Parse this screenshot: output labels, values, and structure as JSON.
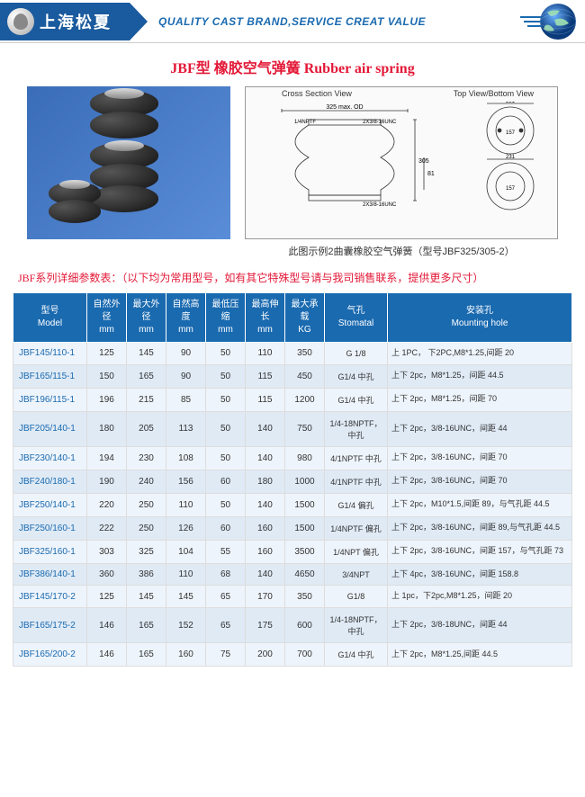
{
  "header": {
    "brand": "上海松夏",
    "registered": "®",
    "slogan_html": "QUALITY CAST BRAND,SERVICE CREAT VALUE"
  },
  "title": "JBF型 橡胶空气弹簧  Rubber air spring",
  "diagram": {
    "cross_section_label": "Cross Section View",
    "top_view_label": "Top View/Bottom View",
    "dim_od": "325 max. OD",
    "dim_h": "305",
    "dim_convol": "81",
    "port1": "1/4NPTF",
    "port2": "2X3/8-16UNC",
    "tv_outer": "231",
    "tv_inner": "157",
    "caption": "此图示例2曲囊橡胶空气弹簧（型号JBF325/305-2）"
  },
  "table_note": "JBF系列详细参数表：（以下均为常用型号，如有其它特殊型号请与我司销售联系，提供更多尺寸）",
  "columns": [
    {
      "zh": "型号",
      "en": "Model"
    },
    {
      "zh": "自然外径",
      "en": "mm"
    },
    {
      "zh": "最大外径",
      "en": "mm"
    },
    {
      "zh": "自然高度",
      "en": "mm"
    },
    {
      "zh": "最低压缩",
      "en": "mm"
    },
    {
      "zh": "最高伸长",
      "en": "mm"
    },
    {
      "zh": "最大承载",
      "en": "KG"
    },
    {
      "zh": "气孔",
      "en": "Stomatal"
    },
    {
      "zh": "安装孔",
      "en": "Mounting hole"
    }
  ],
  "rows": [
    [
      "JBF145/110-1",
      "125",
      "145",
      "90",
      "50",
      "110",
      "350",
      "G 1/8",
      "上    1PC，   下2PC,M8*1.25,间距 20"
    ],
    [
      "JBF165/115-1",
      "150",
      "165",
      "90",
      "50",
      "115",
      "450",
      "G1/4 中孔",
      "上下 2pc，M8*1.25，间距 44.5"
    ],
    [
      "JBF196/115-1",
      "196",
      "215",
      "85",
      "50",
      "115",
      "1200",
      "G1/4 中孔",
      "上下 2pc，M8*1.25，间距 70"
    ],
    [
      "JBF205/140-1",
      "180",
      "205",
      "113",
      "50",
      "140",
      "750",
      "1/4-18NPTF，中孔",
      "上下 2pc，3/8-16UNC，间距 44"
    ],
    [
      "JBF230/140-1",
      "194",
      "230",
      "108",
      "50",
      "140",
      "980",
      "4/1NPTF 中孔",
      "上下 2pc，3/8-16UNC，间距 70"
    ],
    [
      "JBF240/180-1",
      "190",
      "240",
      "156",
      "60",
      "180",
      "1000",
      "4/1NPTF 中孔",
      "上下 2pc，3/8-16UNC，间距 70"
    ],
    [
      "JBF250/140-1",
      "220",
      "250",
      "110",
      "50",
      "140",
      "1500",
      "G1/4 偏孔",
      "上下 2pc，M10*1.5,间距 89，与气孔距 44.5"
    ],
    [
      "JBF250/160-1",
      "222",
      "250",
      "126",
      "60",
      "160",
      "1500",
      "1/4NPTF 偏孔",
      "上下 2pc，3/8-16UNC，间距 89,与气孔距 44.5"
    ],
    [
      "JBF325/160-1",
      "303",
      "325",
      "104",
      "55",
      "160",
      "3500",
      "1/4NPT 偏孔",
      "上下 2pc，3/8-16UNC，间距 157，与气孔距 73"
    ],
    [
      "JBF386/140-1",
      "360",
      "386",
      "110",
      "68",
      "140",
      "4650",
      "3/4NPT",
      "上下 4pc，3/8-16UNC，间距 158.8"
    ],
    [
      "JBF145/170-2",
      "125",
      "145",
      "145",
      "65",
      "170",
      "350",
      "G1/8",
      "上 1pc，下2pc,M8*1.25，间距 20"
    ],
    [
      "JBF165/175-2",
      "146",
      "165",
      "152",
      "65",
      "175",
      "600",
      "1/4-18NPTF，中孔",
      "上下 2pc，3/8-18UNC，间距 44"
    ],
    [
      "JBF165/200-2",
      "146",
      "165",
      "160",
      "75",
      "200",
      "700",
      "G1/4 中孔",
      "上下 2pc，M8*1.25,间距 44.5"
    ]
  ],
  "colors": {
    "accent_red": "#e31837",
    "header_blue": "#1a6ab0",
    "dark_blue": "#1a5a9e",
    "row_odd": "#eef4fb",
    "row_even": "#dfeaf5"
  }
}
